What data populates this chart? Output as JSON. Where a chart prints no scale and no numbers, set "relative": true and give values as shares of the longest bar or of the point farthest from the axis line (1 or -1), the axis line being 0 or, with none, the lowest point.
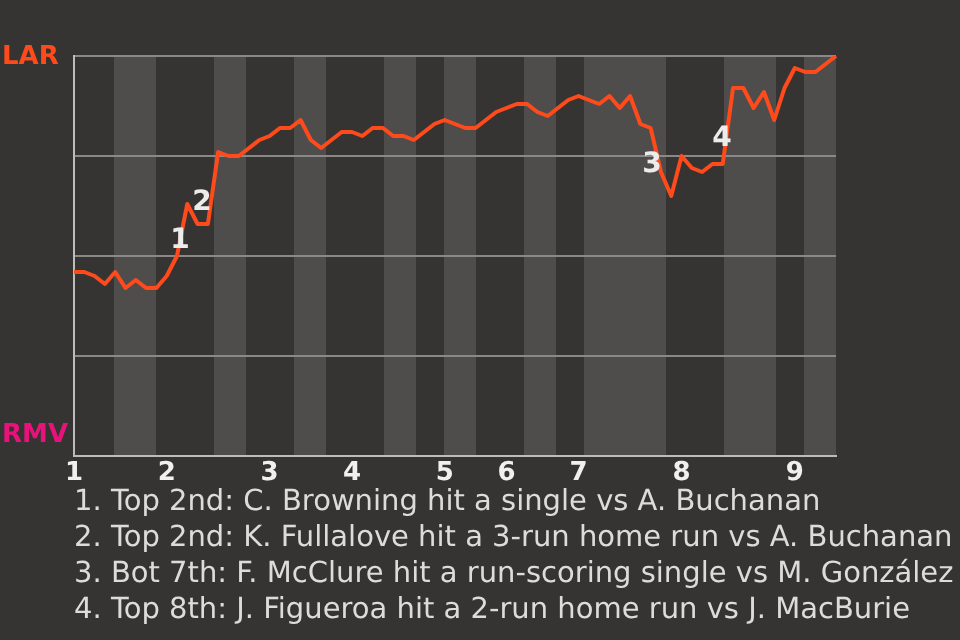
{
  "chart_data": {
    "type": "line",
    "relative": true,
    "categories": [
      "1",
      null,
      null,
      null,
      null,
      null,
      null,
      null,
      null,
      "2",
      null,
      null,
      null,
      null,
      null,
      null,
      null,
      null,
      null,
      "3",
      null,
      null,
      null,
      null,
      null,
      null,
      null,
      "4",
      null,
      null,
      null,
      null,
      null,
      null,
      null,
      null,
      "5",
      null,
      null,
      null,
      null,
      null,
      "6",
      null,
      null,
      null,
      null,
      null,
      null,
      "7",
      null,
      null,
      null,
      null,
      null,
      null,
      null,
      null,
      null,
      "8",
      null,
      null,
      null,
      null,
      null,
      null,
      null,
      null,
      null,
      null,
      "9",
      null,
      null,
      null,
      null
    ],
    "series": [
      {
        "color": "#ff4a1c",
        "values": [
          0.46,
          0.46,
          0.45,
          0.43,
          0.46,
          0.42,
          0.44,
          0.42,
          0.42,
          0.45,
          0.5,
          0.63,
          0.58,
          0.58,
          0.76,
          0.75,
          0.75,
          0.77,
          0.79,
          0.8,
          0.82,
          0.82,
          0.84,
          0.79,
          0.77,
          0.79,
          0.81,
          0.81,
          0.8,
          0.82,
          0.82,
          0.8,
          0.8,
          0.79,
          0.81,
          0.83,
          0.84,
          0.83,
          0.82,
          0.82,
          0.84,
          0.86,
          0.87,
          0.88,
          0.88,
          0.86,
          0.85,
          0.87,
          0.89,
          0.9,
          0.89,
          0.88,
          0.9,
          0.87,
          0.9,
          0.83,
          0.82,
          0.71,
          0.65,
          0.75,
          0.72,
          0.71,
          0.73,
          0.73,
          0.92,
          0.92,
          0.87,
          0.91,
          0.84,
          0.92,
          0.97,
          0.96,
          0.96,
          0.98,
          1.0
        ]
      }
    ],
    "grid": "y",
    "legend": false,
    "marker": "none",
    "annotations": [
      "1",
      "2",
      "3",
      "4",
      "LAR",
      "RMV",
      "1. Top 2nd: C. Browning hit a single vs A. Buchanan",
      "2. Top 2nd: K. Fullalove hit a 3-run home run vs A. Buchanan",
      "3. Bot 7th: F. McClure hit a run-scoring single vs M. González",
      "4. Top 8th: J. Figueroa hit a 2-run home run vs J. MacBurie"
    ]
  }
}
